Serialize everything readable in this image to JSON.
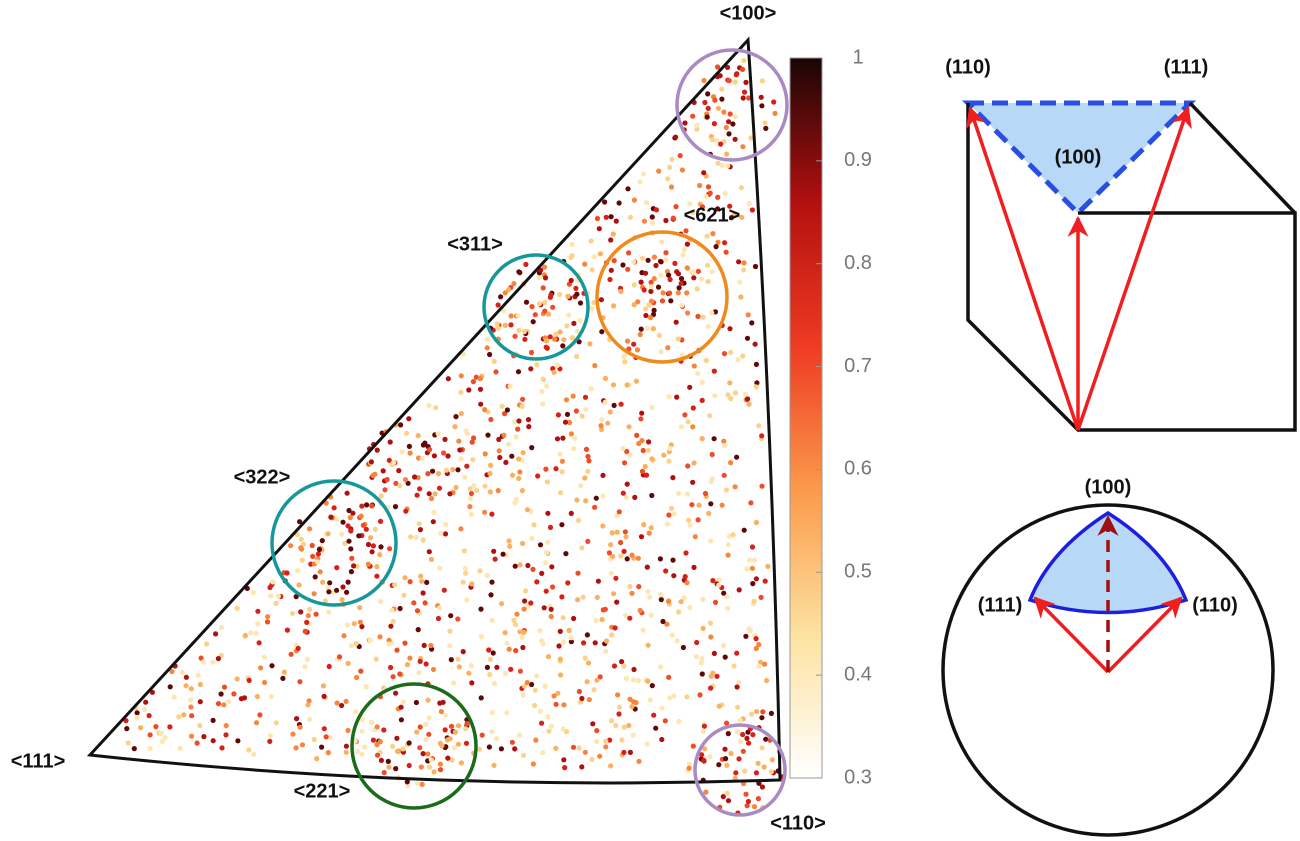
{
  "pole_figure": {
    "labels": {
      "p100": "<100>",
      "p621": "<621>",
      "p311": "<311>",
      "p322": "<322>",
      "p111": "<111>",
      "p221": "<221>",
      "p110": "<110>"
    },
    "colorbar": {
      "lim": [
        0.3,
        1
      ],
      "ticks": [
        1,
        0.9,
        0.8,
        0.7,
        0.6,
        0.5,
        0.4,
        0.3
      ]
    }
  },
  "cube": {
    "labels": {
      "a": "(110)",
      "b": "(111)",
      "c": "(100)"
    }
  },
  "projection": {
    "labels": {
      "a": "(100)",
      "b": "(111)",
      "c": "(110)"
    }
  }
}
